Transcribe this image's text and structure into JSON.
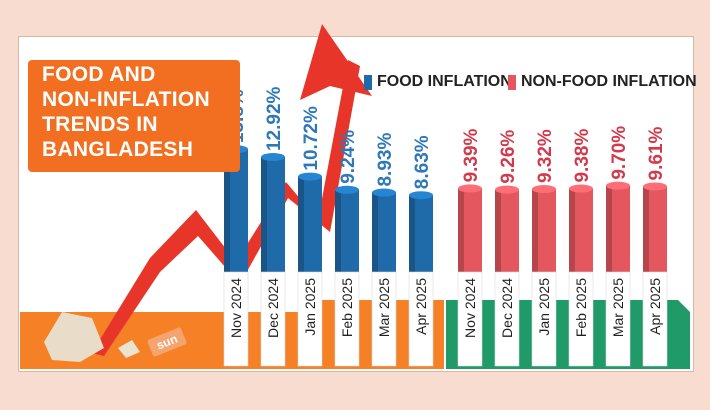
{
  "title_lines": [
    "FOOD AND",
    "NON-INFLATION",
    "TRENDS IN",
    "BANGLADESH"
  ],
  "legend": {
    "food": "FOOD INFLATION",
    "nonfood": "NON-FOOD INFLATION"
  },
  "brand": "sun",
  "colors": {
    "background": "#f9dcd0",
    "title_box": "#f26f21",
    "food": "#1f6aa8",
    "food_label": "#2f78b8",
    "nonfood": "#e4575f",
    "nonfood_label": "#d23a4b",
    "arrow": "#e8352a",
    "base_food": "#f58025",
    "base_nonfood": "#1f9a68"
  },
  "chart_data": {
    "type": "bar",
    "title": "FOOD AND NON-INFLATION TRENDS IN BANGLADESH",
    "groups": [
      {
        "name": "FOOD INFLATION",
        "categories": [
          "Nov 2024",
          "Dec 2024",
          "Jan 2025",
          "Feb 2025",
          "Mar 2025",
          "Apr 2025"
        ],
        "values": [
          13.8,
          12.92,
          10.72,
          9.24,
          8.93,
          8.63
        ],
        "labels": [
          "13.8%",
          "12.92%",
          "10.72%",
          "9.24%",
          "8.93%",
          "8.63%"
        ]
      },
      {
        "name": "NON-FOOD INFLATION",
        "categories": [
          "Nov 2024",
          "Dec 2024",
          "Jan 2025",
          "Feb 2025",
          "Mar 2025",
          "Apr 2025"
        ],
        "values": [
          9.39,
          9.26,
          9.32,
          9.38,
          9.7,
          9.61
        ],
        "labels": [
          "9.39%",
          "9.26%",
          "9.32%",
          "9.38%",
          "9.70%",
          "9.61%"
        ]
      }
    ],
    "legend": "top",
    "grid": false
  }
}
